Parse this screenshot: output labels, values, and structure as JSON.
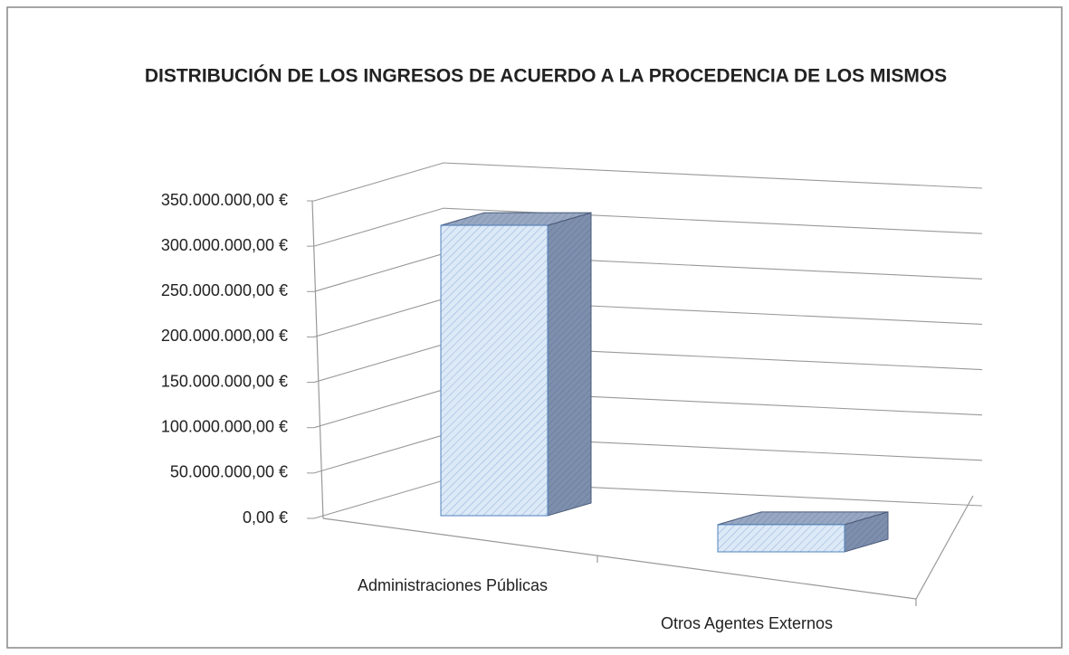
{
  "chart_data": {
    "type": "bar3d",
    "title": "DISTRIBUCIÓN DE LOS INGRESOS DE ACUERDO A LA PROCEDENCIA DE LOS MISMOS",
    "categories": [
      "Administraciones Públicas",
      "Otros Agentes Externos"
    ],
    "values": [
      320000000,
      30000000
    ],
    "color": "#dce9f7",
    "ylim": [
      0,
      350000000
    ],
    "yticks": [
      {
        "value": 0,
        "label": "0,00 €"
      },
      {
        "value": 50000000,
        "label": "50.000.000,00 €"
      },
      {
        "value": 100000000,
        "label": "100.000.000,00 €"
      },
      {
        "value": 150000000,
        "label": "150.000.000,00 €"
      },
      {
        "value": 200000000,
        "label": "200.000.000,00 €"
      },
      {
        "value": 250000000,
        "label": "250.000.000,00 €"
      },
      {
        "value": 300000000,
        "label": "300.000.000,00 €"
      },
      {
        "value": 350000000,
        "label": "350.000.000,00 €"
      }
    ],
    "grid": true
  }
}
